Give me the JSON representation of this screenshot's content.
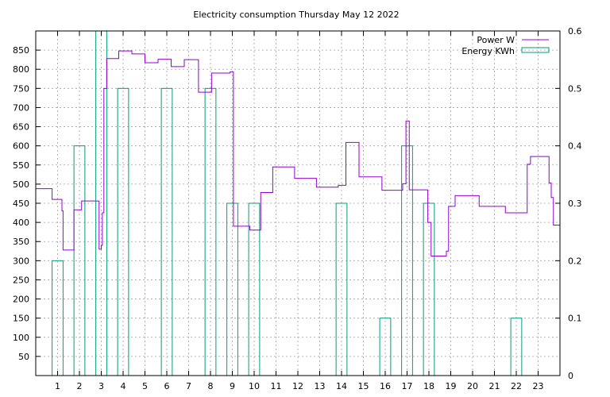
{
  "chart_data": {
    "type": "step-line+bar",
    "title": "Electricity consumption Thursday May 12 2022",
    "xlabel": "",
    "ylabel": "",
    "x_ticks": [
      1,
      2,
      3,
      4,
      5,
      6,
      7,
      8,
      9,
      10,
      11,
      12,
      13,
      14,
      15,
      16,
      17,
      18,
      19,
      20,
      21,
      22,
      23
    ],
    "xlim": [
      0,
      24
    ],
    "y_left": {
      "lim": [
        0,
        900
      ],
      "ticks": [
        50,
        100,
        150,
        200,
        250,
        300,
        350,
        400,
        450,
        500,
        550,
        600,
        650,
        700,
        750,
        800,
        850
      ]
    },
    "y_right": {
      "lim": [
        0,
        0.6
      ],
      "ticks": [
        0,
        0.1,
        0.2,
        0.3,
        0.4,
        0.5,
        0.6
      ]
    },
    "grid": true,
    "legend_position": "top-right",
    "colors": {
      "power": "#9400d3",
      "energy": "#009e73"
    },
    "series": [
      {
        "name": "Power W",
        "axis": "left",
        "style": "step",
        "points": [
          [
            0,
            488
          ],
          [
            0.75,
            460
          ],
          [
            1.2,
            430
          ],
          [
            1.25,
            328
          ],
          [
            1.65,
            328
          ],
          [
            1.75,
            433
          ],
          [
            2.1,
            456
          ],
          [
            2.85,
            456
          ],
          [
            2.9,
            330
          ],
          [
            3.0,
            340
          ],
          [
            3.05,
            425
          ],
          [
            3.12,
            750
          ],
          [
            3.25,
            828
          ],
          [
            3.8,
            848
          ],
          [
            4.4,
            840
          ],
          [
            5.0,
            817
          ],
          [
            5.6,
            826
          ],
          [
            6.2,
            807
          ],
          [
            6.8,
            825
          ],
          [
            7.45,
            740
          ],
          [
            8.05,
            790
          ],
          [
            8.9,
            793
          ],
          [
            9.05,
            390
          ],
          [
            9.8,
            380
          ],
          [
            10.3,
            478
          ],
          [
            10.85,
            545
          ],
          [
            11.85,
            515
          ],
          [
            12.85,
            492
          ],
          [
            13.85,
            497
          ],
          [
            14.2,
            609
          ],
          [
            14.8,
            519
          ],
          [
            15.85,
            484
          ],
          [
            16.8,
            501
          ],
          [
            16.95,
            665
          ],
          [
            17.1,
            485
          ],
          [
            17.95,
            400
          ],
          [
            18.1,
            312
          ],
          [
            18.8,
            325
          ],
          [
            18.9,
            442
          ],
          [
            19.2,
            470
          ],
          [
            20.3,
            442
          ],
          [
            21.5,
            425
          ],
          [
            22.5,
            552
          ],
          [
            22.65,
            572
          ],
          [
            23.5,
            503
          ],
          [
            23.6,
            465
          ],
          [
            23.7,
            393
          ],
          [
            24,
            393
          ]
        ]
      },
      {
        "name": "Energy KWh",
        "axis": "right",
        "style": "bar",
        "bars": [
          {
            "x": 1,
            "value": 0.2
          },
          {
            "x": 2,
            "value": 0.4
          },
          {
            "x": 3,
            "value": 0.6
          },
          {
            "x": 4,
            "value": 0.5
          },
          {
            "x": 5,
            "value": 0.0
          },
          {
            "x": 6,
            "value": 0.5
          },
          {
            "x": 7,
            "value": 0.0
          },
          {
            "x": 8,
            "value": 0.5
          },
          {
            "x": 9,
            "value": 0.3
          },
          {
            "x": 10,
            "value": 0.3
          },
          {
            "x": 14,
            "value": 0.3
          },
          {
            "x": 16,
            "value": 0.1
          },
          {
            "x": 17,
            "value": 0.4
          },
          {
            "x": 18,
            "value": 0.3
          },
          {
            "x": 22,
            "value": 0.1
          }
        ]
      }
    ]
  }
}
